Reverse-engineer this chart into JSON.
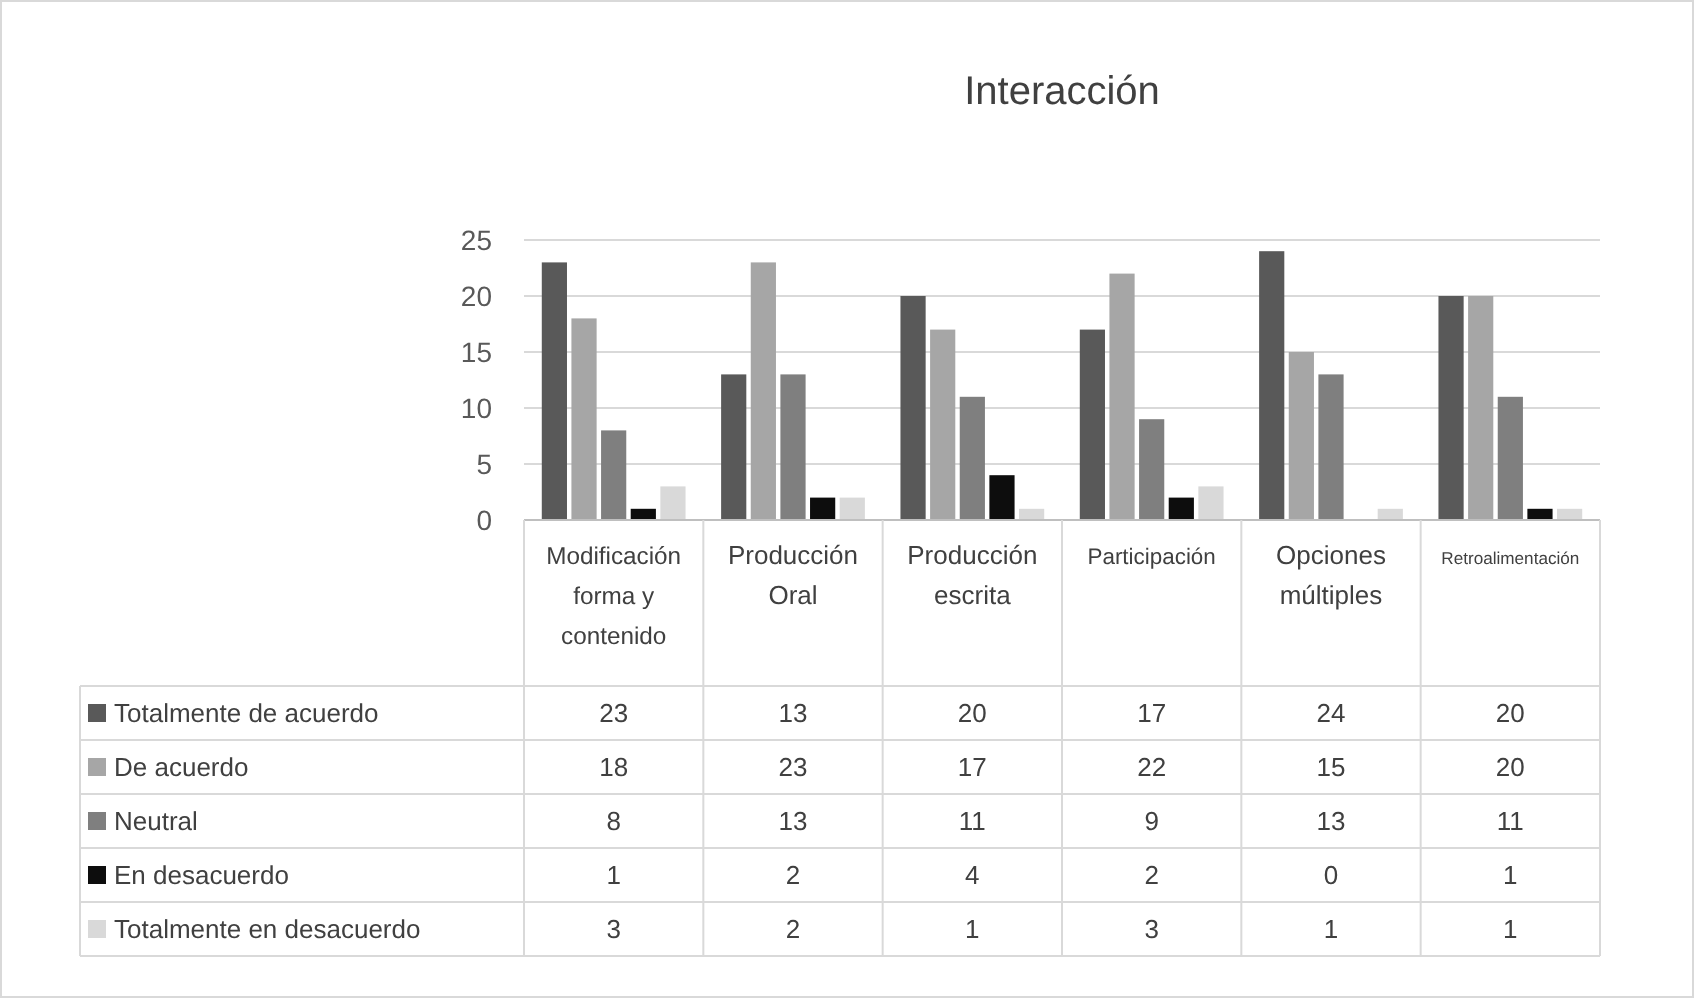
{
  "chart_data": {
    "type": "bar",
    "title": "Interacción",
    "categories": [
      "Modificación forma y contenido",
      "Producción Oral",
      "Producción escrita",
      "Participación",
      "Opciones múltiples",
      "Retroalimentación"
    ],
    "series": [
      {
        "name": "Totalmente de acuerdo",
        "color": "#595959",
        "values": [
          23,
          13,
          20,
          17,
          24,
          20
        ]
      },
      {
        "name": "De acuerdo",
        "color": "#a6a6a6",
        "values": [
          18,
          23,
          17,
          22,
          15,
          20
        ]
      },
      {
        "name": "Neutral",
        "color": "#7f7f7f",
        "values": [
          8,
          13,
          11,
          9,
          13,
          11
        ]
      },
      {
        "name": "En desacuerdo",
        "color": "#0d0d0d",
        "values": [
          1,
          2,
          4,
          2,
          0,
          1
        ]
      },
      {
        "name": "Totalmente en desacuerdo",
        "color": "#d9d9d9",
        "values": [
          3,
          2,
          1,
          3,
          1,
          1
        ]
      }
    ],
    "ylim": [
      0,
      25
    ],
    "yticks": [
      0,
      5,
      10,
      15,
      20,
      25
    ],
    "grid": "y",
    "legend": "bottom",
    "data_labels": true
  }
}
